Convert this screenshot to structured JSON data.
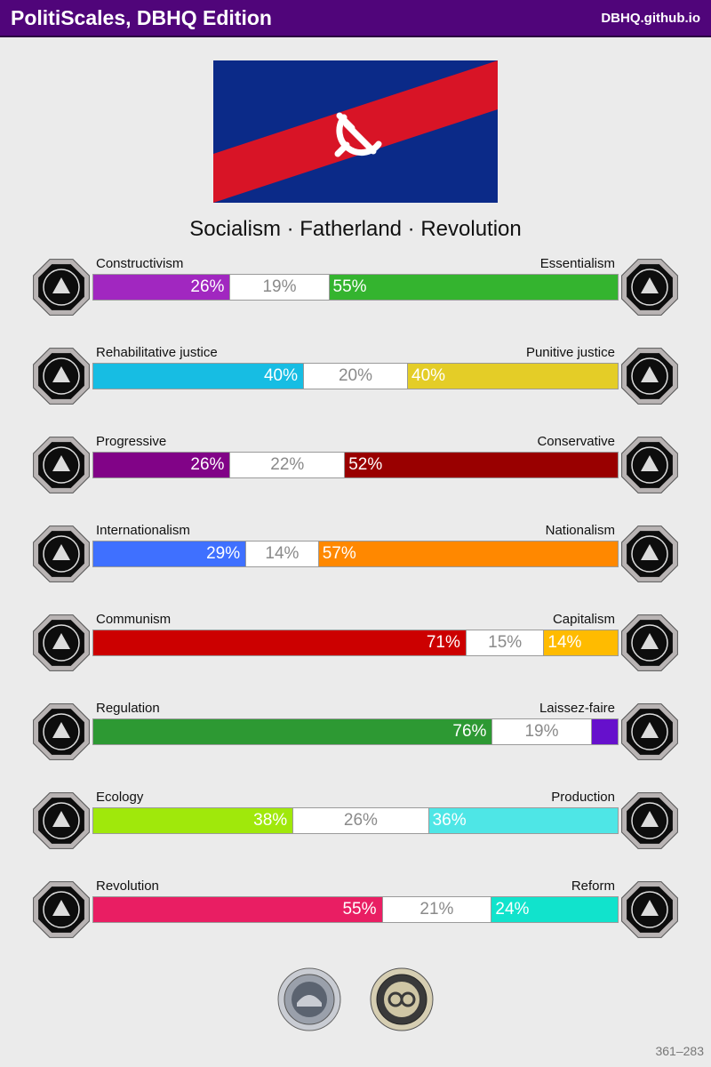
{
  "header": {
    "title": "PolitiScales, DBHQ Edition",
    "site": "DBHQ.github.io"
  },
  "flag": {
    "colors": {
      "blue": "#0b2a88",
      "red": "#d81426",
      "emblem": "#ffffff"
    },
    "emblem_icon": "hammer-and-sickle-icon"
  },
  "slogan": "Socialism · Fatherland · Revolution",
  "axes": [
    {
      "left_label": "Constructivism",
      "right_label": "Essentialism",
      "left_pct": 26,
      "mid_pct": 19,
      "right_pct": 55,
      "left_text": "26%",
      "mid_text": "19%",
      "right_text": "55%",
      "left_color": "#a127c0",
      "right_color": "#34b42f",
      "left_icon": "eye-in-cage-icon",
      "right_icon": "flower-icon"
    },
    {
      "left_label": "Rehabilitative justice",
      "right_label": "Punitive justice",
      "left_pct": 40,
      "mid_pct": 20,
      "right_pct": 40,
      "left_text": "40%",
      "mid_text": "20%",
      "right_text": "40%",
      "left_color": "#17bde3",
      "right_color": "#e4cd27",
      "left_icon": "handshake-icon",
      "right_icon": "prison-bars-icon"
    },
    {
      "left_label": "Progressive",
      "right_label": "Conservative",
      "left_pct": 26,
      "mid_pct": 22,
      "right_pct": 52,
      "left_text": "26%",
      "mid_text": "22%",
      "right_text": "52%",
      "left_color": "#810387",
      "right_color": "#990000",
      "left_icon": "torch-icon",
      "right_icon": "quill-pen-icon"
    },
    {
      "left_label": "Internationalism",
      "right_label": "Nationalism",
      "left_pct": 29,
      "mid_pct": 14,
      "right_pct": 57,
      "left_text": "29%",
      "mid_text": "14%",
      "right_text": "57%",
      "left_color": "#3f70ff",
      "right_color": "#ff8800",
      "left_icon": "globe-wreath-icon",
      "right_icon": "flag-icon"
    },
    {
      "left_label": "Communism",
      "right_label": "Capitalism",
      "left_pct": 71,
      "mid_pct": 15,
      "right_pct": 14,
      "left_text": "71%",
      "mid_text": "15%",
      "right_text": "14%",
      "left_color": "#cc0000",
      "right_color": "#ffbb00",
      "left_icon": "hammer-sickle-icon",
      "right_icon": "money-bag-icon"
    },
    {
      "left_label": "Regulation",
      "right_label": "Laissez-faire",
      "left_pct": 76,
      "mid_pct": 19,
      "right_pct": 5,
      "left_text": "76%",
      "mid_text": "19%",
      "right_text": "",
      "left_color": "#2d9933",
      "right_color": "#6610cc",
      "left_icon": "ruler-compass-icon",
      "right_icon": "butterfly-icon"
    },
    {
      "left_label": "Ecology",
      "right_label": "Production",
      "left_pct": 38,
      "mid_pct": 26,
      "right_pct": 36,
      "left_text": "38%",
      "mid_text": "26%",
      "right_text": "36%",
      "left_color": "#a0e80b",
      "right_color": "#4ee6e6",
      "left_icon": "sprout-icon",
      "right_icon": "gear-icon"
    },
    {
      "left_label": "Revolution",
      "right_label": "Reform",
      "left_pct": 55,
      "mid_pct": 21,
      "right_pct": 24,
      "left_text": "55%",
      "mid_text": "21%",
      "right_text": "24%",
      "left_color": "#e91e63",
      "right_color": "#11e3cc",
      "left_icon": "raised-fist-icon",
      "right_icon": "parliament-icon"
    }
  ],
  "seals": [
    "dome-seal-icon",
    "gear-seal-icon"
  ],
  "footer_code": "361–283"
}
